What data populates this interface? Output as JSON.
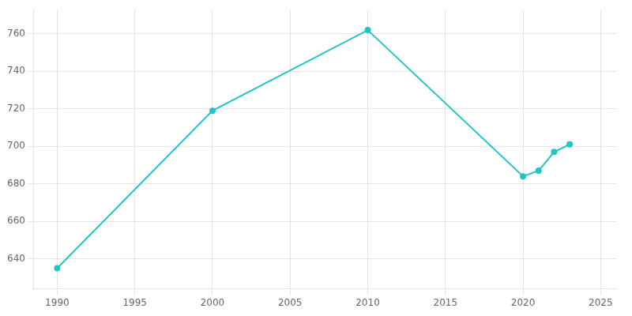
{
  "chart_data": {
    "type": "line",
    "x": [
      1990,
      2000,
      2010,
      2020,
      2021,
      2022,
      2023
    ],
    "values": [
      635,
      719,
      762,
      684,
      687,
      697,
      701
    ],
    "color": "#22c5c5",
    "marker": "circle",
    "xlim": [
      1988.5,
      2026
    ],
    "xticks": [
      1990,
      1995,
      2000,
      2005,
      2010,
      2015,
      2020,
      2025
    ],
    "ylim": [
      624,
      773
    ],
    "yticks": [
      640,
      660,
      680,
      700,
      720,
      740,
      760
    ],
    "grid": true
  }
}
